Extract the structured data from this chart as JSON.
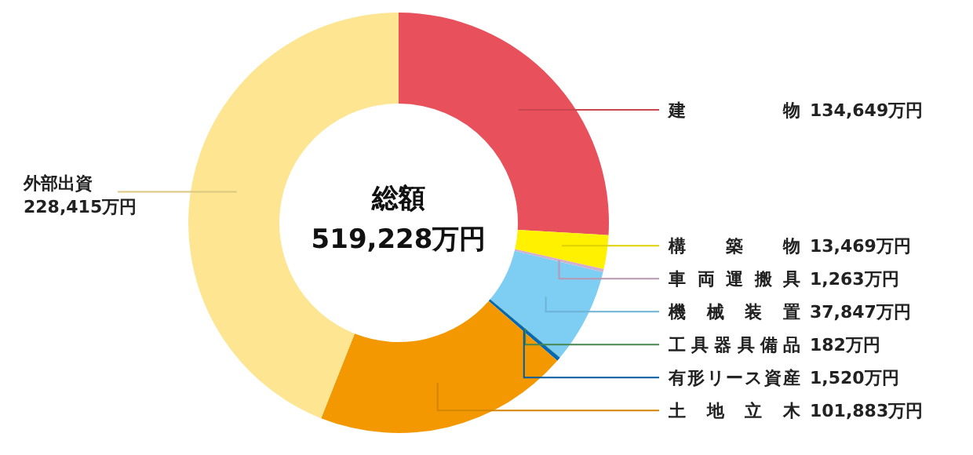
{
  "chart_data": {
    "type": "donut",
    "title": "総額",
    "subtitle": "519,228万円",
    "categories": [
      "建　　物",
      "構　築　物",
      "車両運搬具",
      "機 械 装 置",
      "工具器具備品",
      "有形リース資産",
      "土地立木",
      "外部出資"
    ],
    "values": [
      134649,
      13469,
      1263,
      37847,
      182,
      1520,
      101883,
      228415
    ],
    "colors": [
      "#e8505b",
      "#fff100",
      "#d4aecb",
      "#7ecef4",
      "#4f9a5a",
      "#0068b7",
      "#f39800",
      "#fde592"
    ],
    "value_labels": [
      "134,649万円",
      "13,469万円",
      "1,263万円",
      "37,847万円",
      "182万円",
      "1,520万円",
      "101,883万円",
      "228,415万円"
    ]
  }
}
